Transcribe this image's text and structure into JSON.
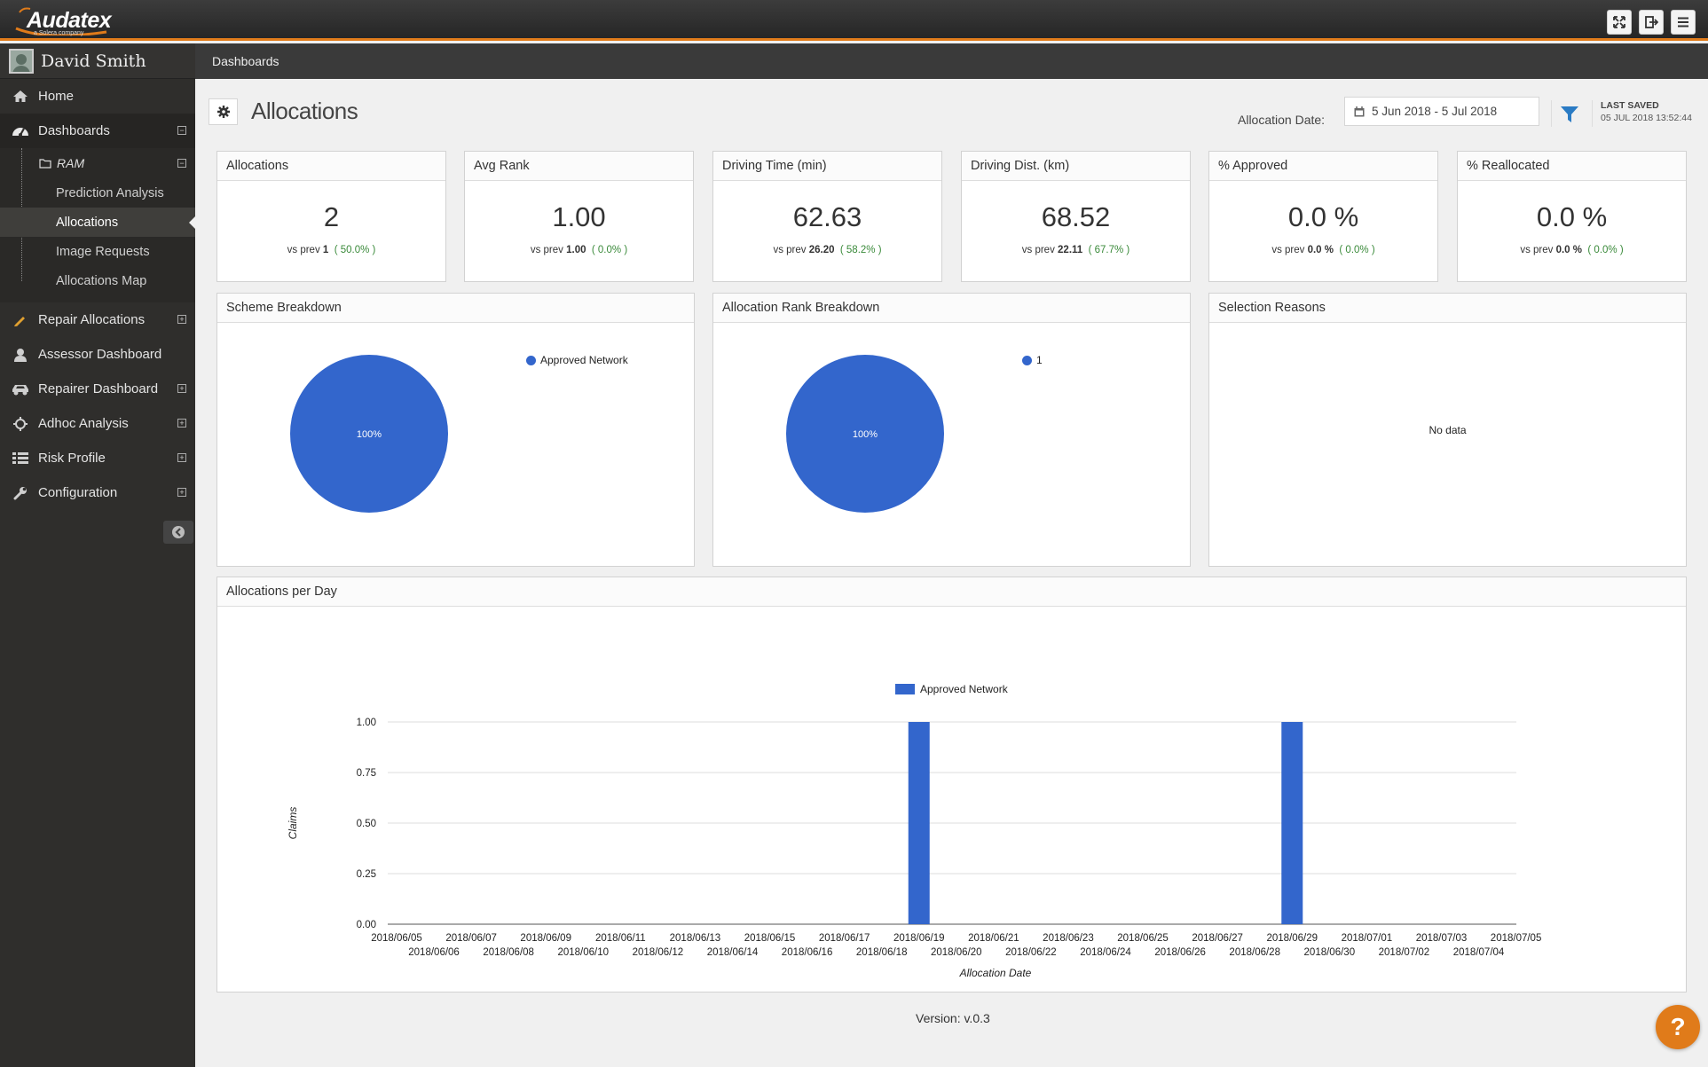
{
  "app": {
    "brand": "Audatex",
    "brand_sub": "a Solera company",
    "colors": {
      "accent": "#e07b1a",
      "series": "#3366cc",
      "sidebar": "#2f2e2c"
    }
  },
  "toolbar": {
    "icons": [
      "fullscreen-icon",
      "logout-icon",
      "menu-icon"
    ]
  },
  "user": {
    "name": "David Smith"
  },
  "sidebar": {
    "items": [
      {
        "label": "Home",
        "icon": "home-icon"
      },
      {
        "label": "Dashboards",
        "icon": "dashboard-icon",
        "expander": "⊟"
      },
      {
        "label": "Repair Allocations",
        "icon": "pencil-icon",
        "expander": "⊞"
      },
      {
        "label": "Assessor Dashboard",
        "icon": "user-icon"
      },
      {
        "label": "Repairer Dashboard",
        "icon": "car-icon",
        "expander": "⊞"
      },
      {
        "label": "Adhoc Analysis",
        "icon": "crosshair-icon",
        "expander": "⊞"
      },
      {
        "label": "Risk Profile",
        "icon": "list-icon",
        "expander": "⊞"
      },
      {
        "label": "Configuration",
        "icon": "wrench-icon",
        "expander": "⊞"
      }
    ],
    "ram": {
      "label": "RAM",
      "expander": "⊟"
    },
    "sub_items": [
      "Prediction Analysis",
      "Allocations",
      "Image Requests",
      "Allocations Map"
    ],
    "active_sub": "Allocations"
  },
  "breadcrumb": "Dashboards",
  "header": {
    "title": "Allocations",
    "date_label": "Allocation Date:",
    "date_value": "5 Jun 2018 - 5 Jul 2018",
    "saved_label": "LAST SAVED",
    "saved_value": "05 JUL 2018 13:52:44"
  },
  "kpis": [
    {
      "title": "Allocations",
      "value": "2",
      "prev_label": "vs prev",
      "prev": "1",
      "change": "( 50.0% )"
    },
    {
      "title": "Avg Rank",
      "value": "1.00",
      "prev_label": "vs prev",
      "prev": "1.00",
      "change": "( 0.0% )"
    },
    {
      "title": "Driving Time (min)",
      "value": "62.63",
      "prev_label": "vs prev",
      "prev": "26.20",
      "change": "( 58.2% )"
    },
    {
      "title": "Driving Dist. (km)",
      "value": "68.52",
      "prev_label": "vs prev",
      "prev": "22.11",
      "change": "( 67.7% )"
    },
    {
      "title": "% Approved",
      "value": "0.0 %",
      "prev_label": "vs prev",
      "prev": "0.0 %",
      "change": "( 0.0% )"
    },
    {
      "title": "% Reallocated",
      "value": "0.0 %",
      "prev_label": "vs prev",
      "prev": "0.0 %",
      "change": "( 0.0% )"
    }
  ],
  "panels": {
    "scheme": {
      "title": "Scheme Breakdown",
      "legend": "Approved Network",
      "slice_label": "100%"
    },
    "rank": {
      "title": "Allocation Rank Breakdown",
      "legend": "1",
      "slice_label": "100%"
    },
    "reasons": {
      "title": "Selection Reasons",
      "empty": "No data"
    },
    "per_day": {
      "title": "Allocations per Day"
    }
  },
  "chart_data": [
    {
      "type": "pie",
      "title": "Scheme Breakdown",
      "slices": [
        {
          "label": "Approved Network",
          "value": 100,
          "display": "100%"
        }
      ],
      "legend": "top-right"
    },
    {
      "type": "pie",
      "title": "Allocation Rank Breakdown",
      "slices": [
        {
          "label": "1",
          "value": 100,
          "display": "100%"
        }
      ],
      "legend": "top-right"
    },
    {
      "type": "bar",
      "title": "Allocations per Day",
      "xlabel": "Allocation Date",
      "ylabel": "Claims",
      "ylim": [
        0,
        1
      ],
      "yticks": [
        "0.00",
        "0.25",
        "0.50",
        "0.75",
        "1.00"
      ],
      "legend": "top",
      "grid": true,
      "categories": [
        "2018/06/05",
        "2018/06/06",
        "2018/06/07",
        "2018/06/08",
        "2018/06/09",
        "2018/06/10",
        "2018/06/11",
        "2018/06/12",
        "2018/06/13",
        "2018/06/14",
        "2018/06/15",
        "2018/06/16",
        "2018/06/17",
        "2018/06/18",
        "2018/06/19",
        "2018/06/20",
        "2018/06/21",
        "2018/06/22",
        "2018/06/23",
        "2018/06/24",
        "2018/06/25",
        "2018/06/26",
        "2018/06/27",
        "2018/06/28",
        "2018/06/29",
        "2018/06/30",
        "2018/07/01",
        "2018/07/02",
        "2018/07/03",
        "2018/07/04",
        "2018/07/05"
      ],
      "series": [
        {
          "name": "Approved Network",
          "color": "#3366cc",
          "values": [
            0,
            0,
            0,
            0,
            0,
            0,
            0,
            0,
            0,
            0,
            0,
            0,
            0,
            0,
            1,
            0,
            0,
            0,
            0,
            0,
            0,
            0,
            0,
            0,
            1,
            0,
            0,
            0,
            0,
            0,
            0
          ]
        }
      ]
    }
  ],
  "footer": {
    "version": "Version: v.0.3",
    "help": "?"
  }
}
